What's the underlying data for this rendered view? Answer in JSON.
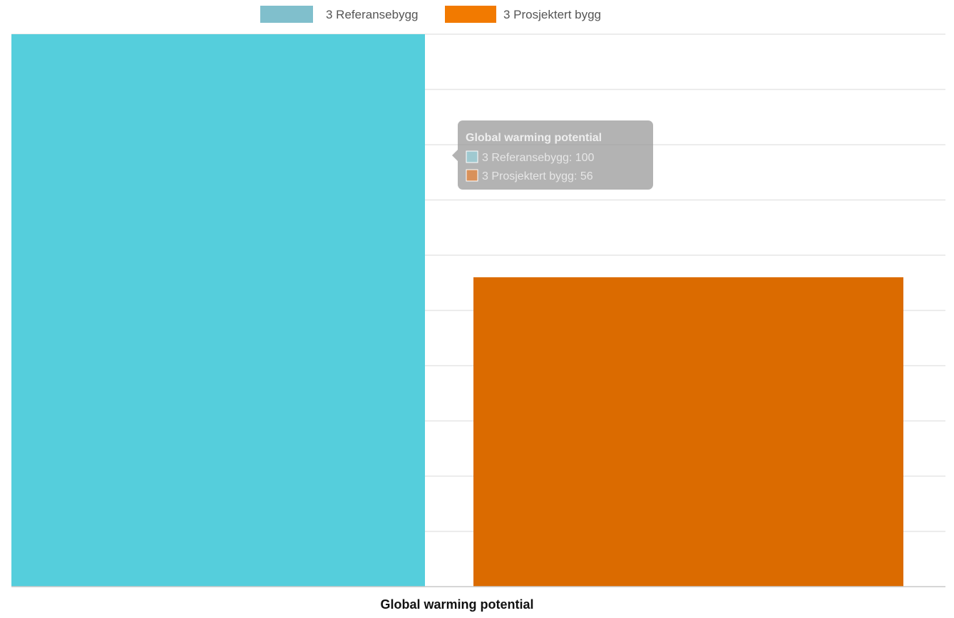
{
  "chart_data": {
    "type": "bar",
    "categories": [
      "Global warming potential"
    ],
    "series": [
      {
        "name": "3 Referansebygg",
        "values": [
          100
        ],
        "color": "#55CEDC",
        "legend_color": "#80BFCC"
      },
      {
        "name": "3 Prosjektert bygg",
        "values": [
          56
        ],
        "color": "#DB6B00",
        "legend_color": "#F27A00"
      }
    ],
    "ylim": [
      0,
      100
    ],
    "grid": true,
    "legend_position": "top-center",
    "tooltip": {
      "title": "Global warming potential",
      "lines": [
        "3 Referansebygg: 100",
        "3 Prosjektert bygg: 56"
      ],
      "swatch_colors": [
        "#9FC9D0",
        "#D9915A"
      ]
    }
  }
}
